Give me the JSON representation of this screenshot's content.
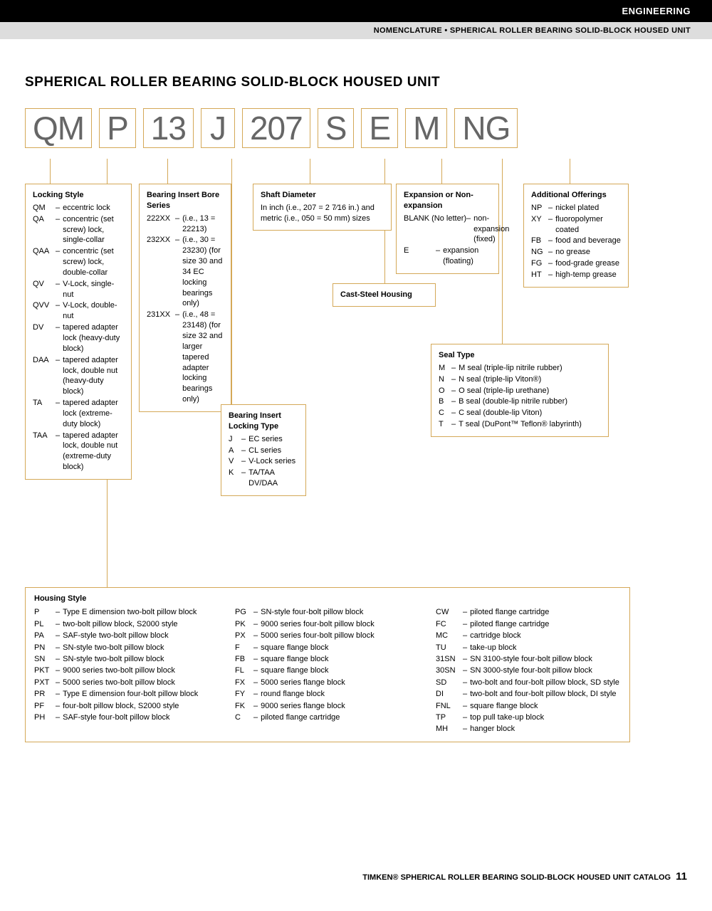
{
  "header": {
    "category": "ENGINEERING",
    "breadcrumb": "NOMENCLATURE • SPHERICAL ROLLER BEARING SOLID-BLOCK HOUSED UNIT"
  },
  "title": "SPHERICAL ROLLER BEARING SOLID-BLOCK HOUSED UNIT",
  "codes": [
    "QM",
    "P",
    "13",
    "J",
    "207",
    "S",
    "E",
    "M",
    "NG"
  ],
  "locking_style": {
    "title": "Locking Style",
    "items": [
      {
        "code": "QM",
        "text": "eccentric lock"
      },
      {
        "code": "QA",
        "text": "concentric (set screw) lock, single-collar"
      },
      {
        "code": "QAA",
        "text": "concentric (set screw) lock, double-collar"
      },
      {
        "code": "QV",
        "text": "V-Lock, single-nut"
      },
      {
        "code": "QVV",
        "text": "V-Lock, double-nut"
      },
      {
        "code": "DV",
        "text": "tapered adapter lock (heavy-duty block)"
      },
      {
        "code": "DAA",
        "text": "tapered adapter lock, double nut (heavy-duty block)"
      },
      {
        "code": "TA",
        "text": "tapered adapter lock (extreme-duty block)"
      },
      {
        "code": "TAA",
        "text": "tapered adapter lock, double nut (extreme-duty block)"
      }
    ]
  },
  "bearing_insert": {
    "title": "Bearing Insert Bore Series",
    "items": [
      {
        "code": "222XX",
        "text": "(i.e., 13 = 22213)"
      },
      {
        "code": "232XX",
        "text": "(i.e., 30 = 23230) (for size 30 and 34 EC locking bearings only)"
      },
      {
        "code": "231XX",
        "text": "(i.e., 48 = 23148) (for size 32 and larger tapered adapter locking bearings only)"
      }
    ]
  },
  "locking_type": {
    "title": "Bearing Insert Locking Type",
    "items": [
      {
        "code": "J",
        "text": "EC series"
      },
      {
        "code": "A",
        "text": "CL series"
      },
      {
        "code": "V",
        "text": "V-Lock series"
      },
      {
        "code": "K",
        "text": "TA/TAA DV/DAA"
      }
    ]
  },
  "shaft_diameter": {
    "title": "Shaft Diameter",
    "text": "In inch (i.e., 207 = 2 7⁄16 in.) and metric (i.e., 050 = 50 mm) sizes"
  },
  "cast_steel": {
    "title": "Cast-Steel Housing"
  },
  "expansion": {
    "title": "Expansion or Non-expansion",
    "items": [
      {
        "code": "BLANK (No letter)",
        "text": "non-expansion (fixed)"
      },
      {
        "code": "E",
        "text": "expansion (floating)"
      }
    ]
  },
  "seal_type": {
    "title": "Seal Type",
    "items": [
      {
        "code": "M",
        "text": "M seal (triple-lip nitrile rubber)"
      },
      {
        "code": "N",
        "text": "N seal (triple-lip Viton®)"
      },
      {
        "code": "O",
        "text": "O seal (triple-lip urethane)"
      },
      {
        "code": "B",
        "text": "B seal (double-lip nitrile rubber)"
      },
      {
        "code": "C",
        "text": "C seal (double-lip Viton)"
      },
      {
        "code": "T",
        "text": "T seal (DuPont™ Teflon® labyrinth)"
      }
    ]
  },
  "additional": {
    "title": "Additional Offerings",
    "items": [
      {
        "code": "NP",
        "text": "nickel plated"
      },
      {
        "code": "XY",
        "text": "fluoropolymer coated"
      },
      {
        "code": "FB",
        "text": "food and beverage"
      },
      {
        "code": "NG",
        "text": "no grease"
      },
      {
        "code": "FG",
        "text": "food-grade grease"
      },
      {
        "code": "HT",
        "text": "high-temp grease"
      }
    ]
  },
  "housing": {
    "title": "Housing Style",
    "col1": [
      {
        "code": "P",
        "text": "Type E dimension two-bolt pillow block"
      },
      {
        "code": "PL",
        "text": "two-bolt pillow block, S2000 style"
      },
      {
        "code": "PA",
        "text": "SAF-style two-bolt pillow block"
      },
      {
        "code": "PN",
        "text": "SN-style two-bolt pillow block"
      },
      {
        "code": "SN",
        "text": "SN-style two-bolt pillow block"
      },
      {
        "code": "PKT",
        "text": "9000 series two-bolt pillow block"
      },
      {
        "code": "PXT",
        "text": "5000 series two-bolt pillow block"
      },
      {
        "code": "PR",
        "text": "Type E dimension four-bolt pillow block"
      },
      {
        "code": "PF",
        "text": "four-bolt pillow block, S2000 style"
      },
      {
        "code": "PH",
        "text": "SAF-style four-bolt pillow block"
      }
    ],
    "col2": [
      {
        "code": "PG",
        "text": "SN-style four-bolt pillow block"
      },
      {
        "code": "PK",
        "text": "9000 series four-bolt pillow block"
      },
      {
        "code": "PX",
        "text": "5000 series four-bolt pillow block"
      },
      {
        "code": "F",
        "text": "square flange block"
      },
      {
        "code": "FB",
        "text": "square flange block"
      },
      {
        "code": "FL",
        "text": "square flange block"
      },
      {
        "code": "FX",
        "text": "5000 series flange block"
      },
      {
        "code": "FY",
        "text": "round flange block"
      },
      {
        "code": "FK",
        "text": "9000 series flange block"
      },
      {
        "code": "C",
        "text": "piloted flange cartridge"
      }
    ],
    "col3": [
      {
        "code": "CW",
        "text": "piloted flange cartridge"
      },
      {
        "code": "FC",
        "text": "piloted flange cartridge"
      },
      {
        "code": "MC",
        "text": "cartridge block"
      },
      {
        "code": "TU",
        "text": "take-up block"
      },
      {
        "code": "31SN",
        "text": "SN 3100-style four-bolt pillow block"
      },
      {
        "code": "30SN",
        "text": "SN 3000-style four-bolt pillow block"
      },
      {
        "code": "SD",
        "text": "two-bolt and four-bolt pillow block, SD style"
      },
      {
        "code": "DI",
        "text": "two-bolt and four-bolt pillow block, DI style"
      },
      {
        "code": "FNL",
        "text": "square flange block"
      },
      {
        "code": "TP",
        "text": "top pull take-up block"
      },
      {
        "code": "MH",
        "text": "hanger block"
      }
    ]
  },
  "footer": {
    "text": "TIMKEN® SPHERICAL ROLLER BEARING SOLID-BLOCK HOUSED UNIT CATALOG",
    "page": "11"
  }
}
